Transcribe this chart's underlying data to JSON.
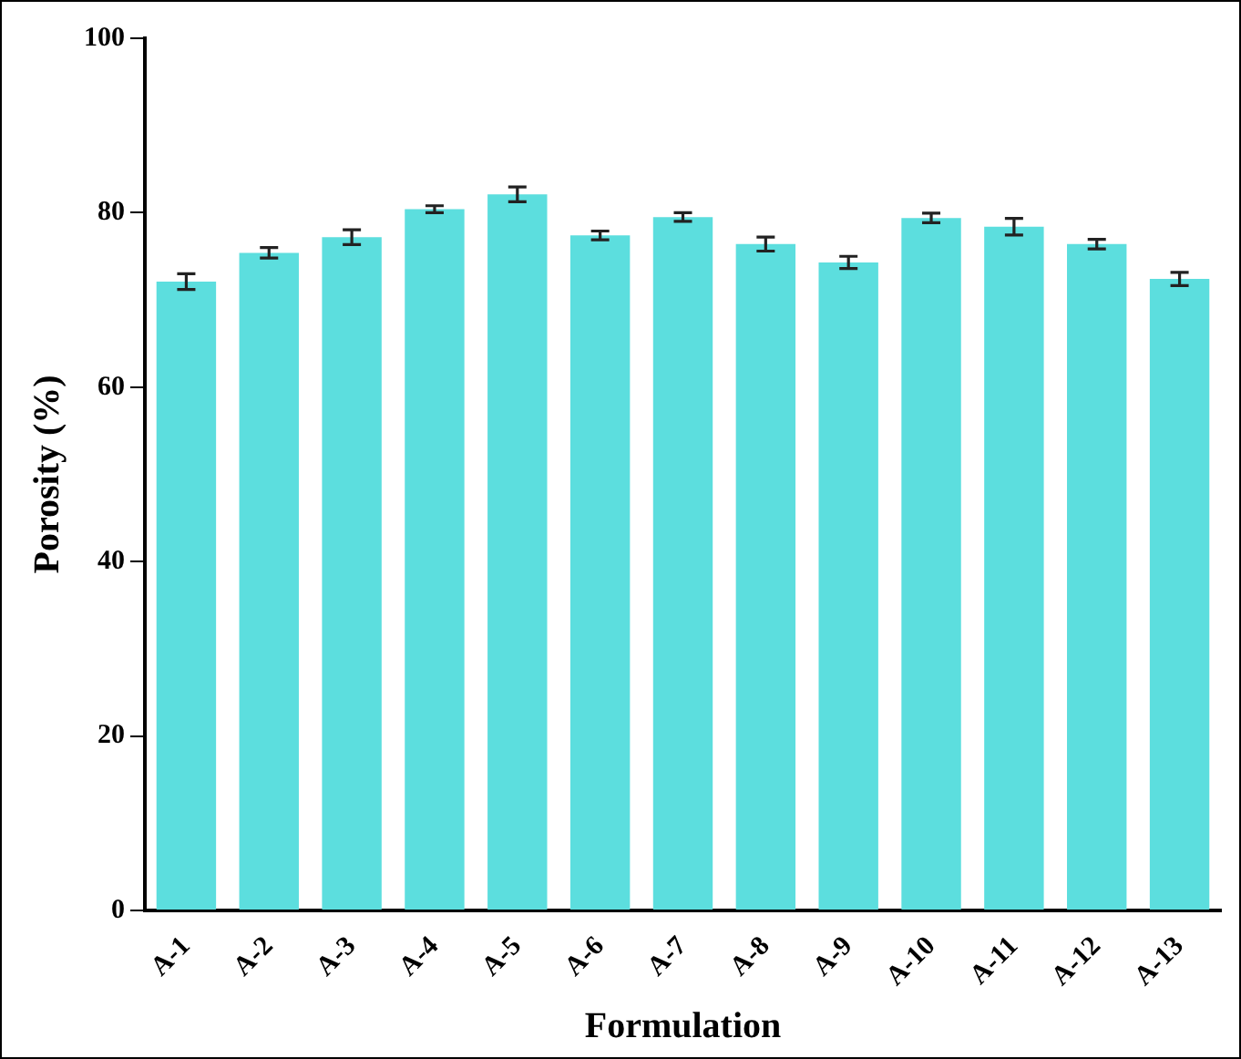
{
  "chart_data": {
    "type": "bar",
    "xlabel": "Formulation",
    "ylabel": "Porosity (%)",
    "categories": [
      "A-1",
      "A-2",
      "A-3",
      "A-4",
      "A-5",
      "A-6",
      "A-7",
      "A-8",
      "A-9",
      "A-10",
      "A-11",
      "A-12",
      "A-13"
    ],
    "values": [
      72.1,
      75.4,
      77.2,
      80.4,
      82.1,
      77.4,
      79.5,
      76.4,
      74.3,
      79.4,
      78.4,
      76.4,
      72.4
    ],
    "errors": [
      0.9,
      0.6,
      0.85,
      0.4,
      0.85,
      0.5,
      0.5,
      0.8,
      0.7,
      0.55,
      0.95,
      0.55,
      0.75
    ],
    "color": "#5cdede",
    "ylim": [
      0,
      100
    ],
    "yticks": [
      0,
      20,
      40,
      60,
      80,
      100
    ],
    "grid": false,
    "legend": false
  }
}
